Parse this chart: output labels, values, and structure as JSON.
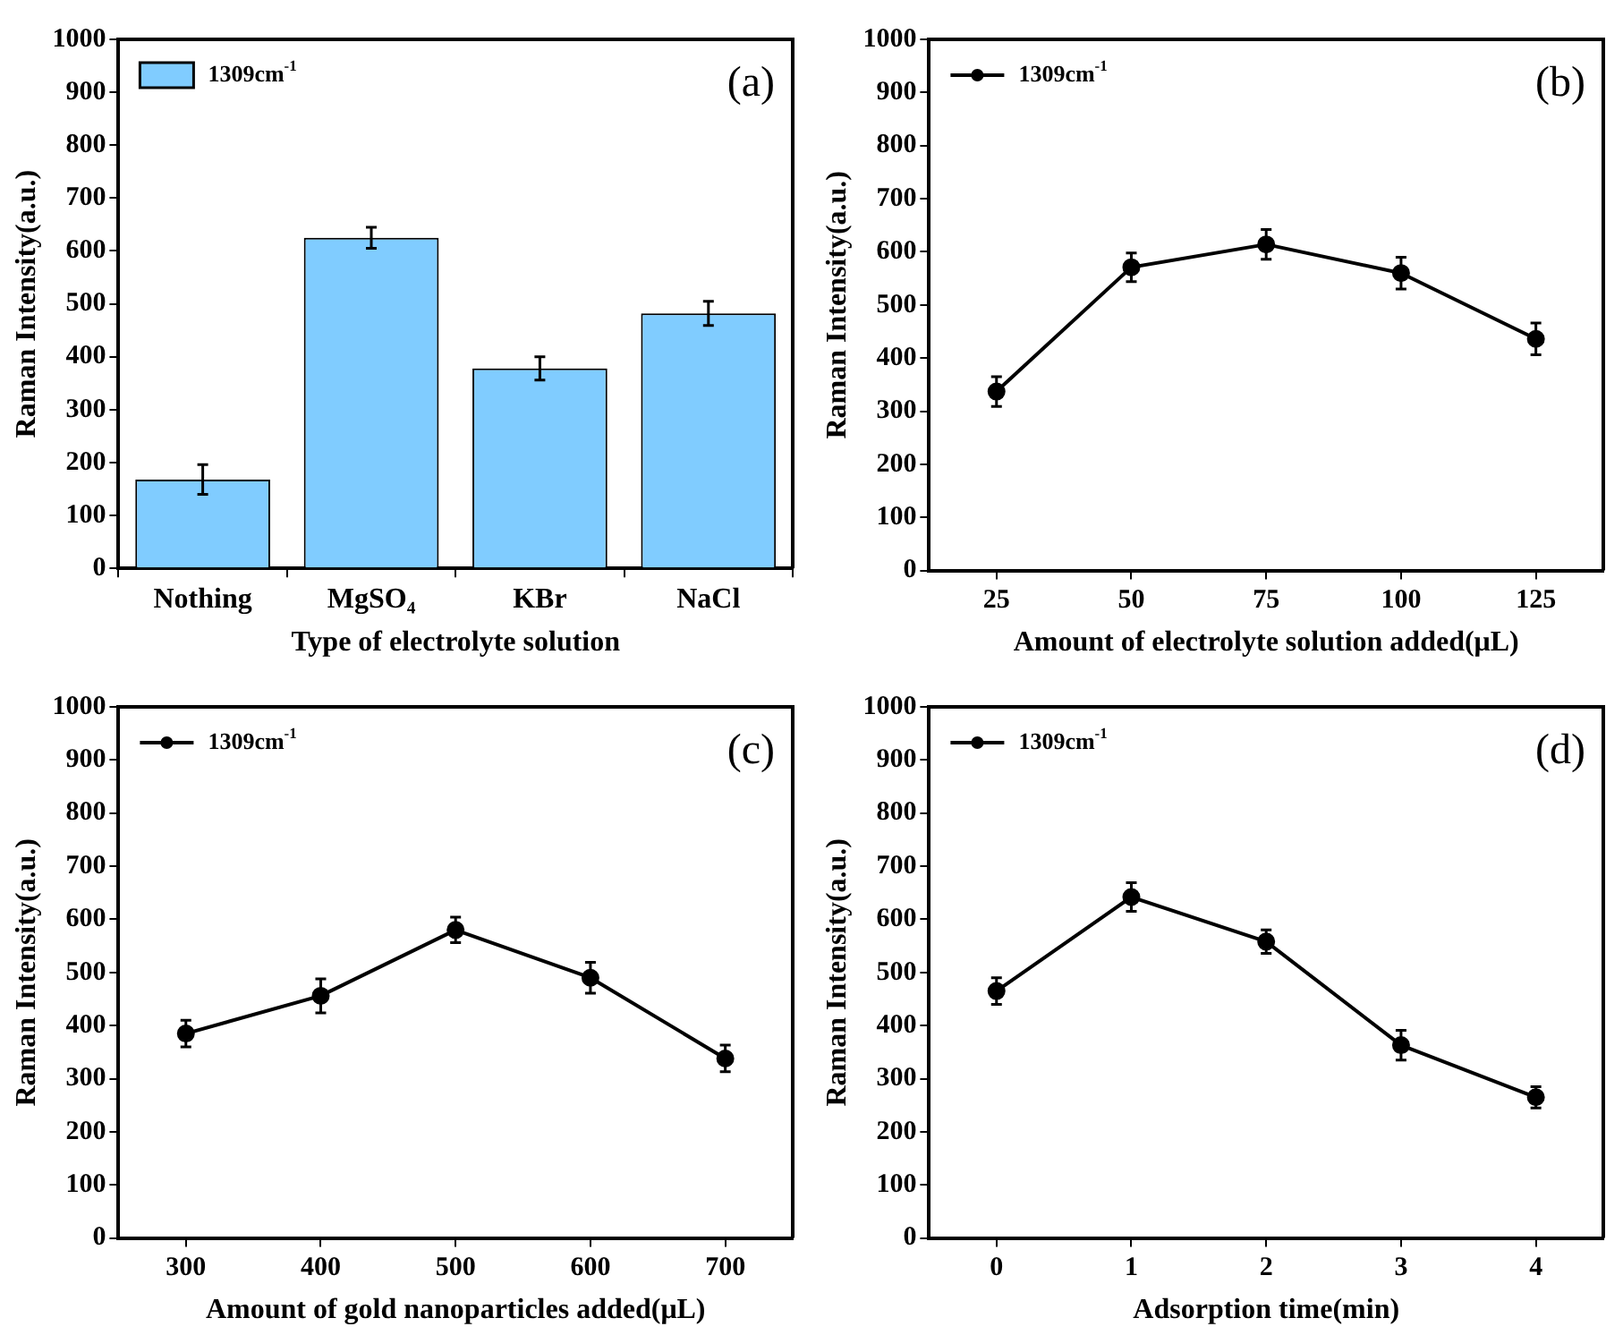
{
  "chart_data": [
    {
      "type": "bar",
      "categories": [
        "Nothing",
        "MgSO₄",
        "KBr",
        "NaCl"
      ],
      "xlabel": "Type of electrolyte solution",
      "ylabel": "Raman Intensity(a.u.)",
      "ylim": [
        0,
        1000
      ],
      "yticks": [
        0,
        100,
        200,
        300,
        400,
        500,
        600,
        700,
        800,
        900,
        1000
      ],
      "grid": false,
      "legend": "top left",
      "annotations": [
        "(a)"
      ],
      "series": [
        {
          "name": "1309cm$^{-1}$",
          "color": "#80ccff",
          "values": [
            168,
            625,
            378,
            482
          ],
          "errors": [
            28,
            20,
            22,
            23
          ]
        }
      ]
    },
    {
      "type": "line",
      "x": [
        25,
        50,
        75,
        100,
        125
      ],
      "xlim": [
        12.5,
        137.5
      ],
      "xticks": [
        25,
        50,
        75,
        100,
        125
      ],
      "xlabel": "Amount of electrolyte solution added(μL)",
      "ylabel": "Raman Intensity(a.u.)",
      "ylim": [
        0,
        1000
      ],
      "yticks": [
        0,
        100,
        200,
        300,
        400,
        500,
        600,
        700,
        800,
        900,
        1000
      ],
      "grid": false,
      "legend": "top left",
      "marker": "circle",
      "line_style": "solid",
      "annotations": [
        "(b)"
      ],
      "series": [
        {
          "name": "1309cm$^{-1}$",
          "color": "#000000",
          "values": [
            337,
            571,
            614,
            560,
            436
          ],
          "errors": [
            28,
            27,
            28,
            30,
            30
          ]
        }
      ]
    },
    {
      "type": "line",
      "x": [
        300,
        400,
        500,
        600,
        700
      ],
      "xlim": [
        250,
        750
      ],
      "xticks": [
        300,
        400,
        500,
        600,
        700
      ],
      "xlabel": "Amount of gold nanoparticles added(μL)",
      "ylabel": "Raman Intensity(a.u.)",
      "ylim": [
        0,
        1000
      ],
      "yticks": [
        0,
        100,
        200,
        300,
        400,
        500,
        600,
        700,
        800,
        900,
        1000
      ],
      "grid": false,
      "legend": "top left",
      "marker": "circle",
      "line_style": "solid",
      "annotations": [
        "(c)"
      ],
      "series": [
        {
          "name": "1309cm$^{-1}$",
          "color": "#000000",
          "values": [
            385,
            456,
            580,
            490,
            338
          ],
          "errors": [
            25,
            32,
            24,
            29,
            25
          ]
        }
      ]
    },
    {
      "type": "line",
      "x": [
        0,
        1,
        2,
        3,
        4
      ],
      "xlim": [
        -0.5,
        4.5
      ],
      "xticks": [
        0,
        1,
        2,
        3,
        4
      ],
      "xlabel": "Adsorption time(min)",
      "ylabel": "Raman Intensity(a.u.)",
      "ylim": [
        0,
        1000
      ],
      "yticks": [
        0,
        100,
        200,
        300,
        400,
        500,
        600,
        700,
        800,
        900,
        1000
      ],
      "grid": false,
      "legend": "top left",
      "marker": "circle",
      "line_style": "solid",
      "annotations": [
        "(d)"
      ],
      "series": [
        {
          "name": "1309cm$^{-1}$",
          "color": "#000000",
          "values": [
            465,
            642,
            558,
            363,
            265
          ],
          "errors": [
            25,
            27,
            22,
            28,
            20
          ]
        }
      ]
    }
  ]
}
